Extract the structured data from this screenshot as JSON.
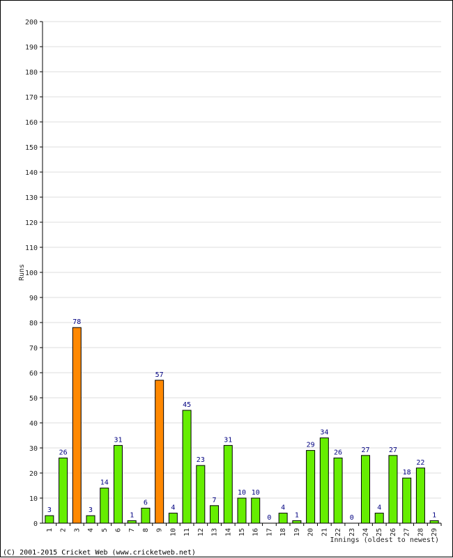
{
  "chart_data": {
    "type": "bar",
    "ylabel": "Runs",
    "xlabel": "Innings (oldest to newest)",
    "ylim": [
      0,
      200
    ],
    "yticks": [
      0,
      10,
      20,
      30,
      40,
      50,
      60,
      70,
      80,
      90,
      100,
      110,
      120,
      130,
      140,
      150,
      160,
      170,
      180,
      190,
      200
    ],
    "grid": true,
    "categories": [
      "1",
      "2",
      "3",
      "4",
      "5",
      "6",
      "7",
      "8",
      "9",
      "10",
      "11",
      "12",
      "13",
      "14",
      "15",
      "16",
      "17",
      "18",
      "19",
      "20",
      "21",
      "22",
      "23",
      "24",
      "25",
      "26",
      "27",
      "28",
      "29"
    ],
    "values": [
      3,
      26,
      78,
      3,
      14,
      31,
      1,
      6,
      57,
      4,
      45,
      23,
      7,
      31,
      10,
      10,
      0,
      4,
      1,
      29,
      34,
      26,
      0,
      27,
      4,
      27,
      18,
      22,
      1
    ],
    "bar_colors": [
      "#66ee00",
      "#66ee00",
      "#ff8800",
      "#66ee00",
      "#66ee00",
      "#66ee00",
      "#66ee00",
      "#66ee00",
      "#ff8800",
      "#66ee00",
      "#66ee00",
      "#66ee00",
      "#66ee00",
      "#66ee00",
      "#66ee00",
      "#66ee00",
      "#66ee00",
      "#66ee00",
      "#66ee00",
      "#66ee00",
      "#66ee00",
      "#66ee00",
      "#66ee00",
      "#66ee00",
      "#66ee00",
      "#66ee00",
      "#66ee00",
      "#66ee00",
      "#66ee00"
    ]
  },
  "footer": {
    "copyright": "(C) 2001-2015 Cricket Web (www.cricketweb.net)"
  },
  "colors": {
    "grid": "#dddddd",
    "axis": "#000000",
    "label": "#000080"
  }
}
